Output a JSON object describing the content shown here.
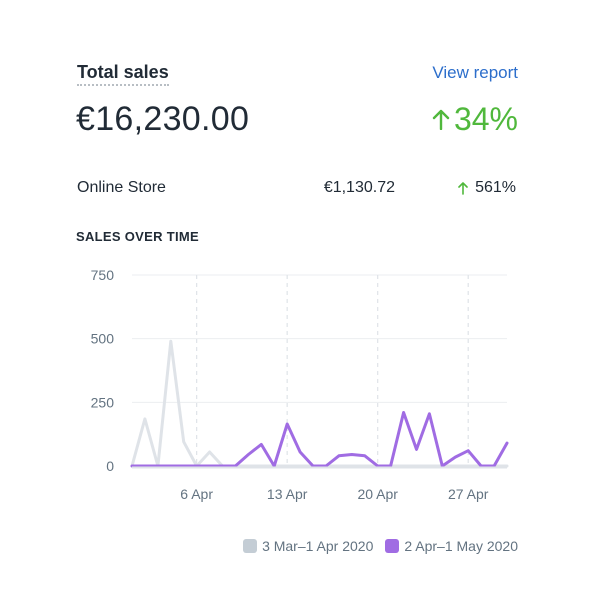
{
  "card": {
    "title": "Total sales",
    "view_report_label": "View report",
    "total_value": "€16,230.00",
    "total_change": "34%"
  },
  "breakdown": [
    {
      "label": "Online Store",
      "value": "€1,130.72",
      "change": "561%"
    }
  ],
  "chart_heading": "SALES OVER TIME",
  "colors": {
    "positive": "#50b83c",
    "link": "#2c6ecb",
    "current_series": "#a06ce3",
    "previous_series": "#dfe3e8"
  },
  "chart_data": {
    "type": "line",
    "title": "SALES OVER TIME",
    "xlabel": "",
    "ylabel": "",
    "ylim": [
      0,
      750
    ],
    "yticks": [
      0,
      250,
      500,
      750
    ],
    "xticks": [
      "6 Apr",
      "13 Apr",
      "20 Apr",
      "27 Apr"
    ],
    "xtick_positions": [
      6,
      13,
      20,
      27
    ],
    "grid": true,
    "legend": "bottom-right",
    "series": [
      {
        "name": "3 Mar–1 Apr 2020",
        "color": "#dfe3e8",
        "x": [
          1,
          2,
          3,
          4,
          5,
          6,
          7,
          8,
          9,
          10,
          11,
          12,
          13,
          14,
          15,
          16,
          17,
          18,
          19,
          20,
          21,
          22,
          23,
          24,
          25,
          26,
          27,
          28,
          29,
          30
        ],
        "values": [
          0,
          185,
          0,
          490,
          95,
          0,
          55,
          0,
          0,
          0,
          0,
          0,
          0,
          0,
          0,
          0,
          0,
          0,
          0,
          0,
          0,
          0,
          0,
          0,
          0,
          0,
          0,
          0,
          0,
          0
        ]
      },
      {
        "name": "2 Apr–1 May 2020",
        "color": "#a06ce3",
        "x": [
          1,
          2,
          3,
          4,
          5,
          6,
          7,
          8,
          9,
          10,
          11,
          12,
          13,
          14,
          15,
          16,
          17,
          18,
          19,
          20,
          21,
          22,
          23,
          24,
          25,
          26,
          27,
          28,
          29,
          30
        ],
        "values": [
          0,
          0,
          0,
          0,
          0,
          0,
          0,
          0,
          0,
          45,
          85,
          0,
          165,
          55,
          0,
          0,
          40,
          45,
          40,
          0,
          0,
          210,
          65,
          205,
          0,
          35,
          60,
          0,
          0,
          90
        ]
      }
    ]
  }
}
